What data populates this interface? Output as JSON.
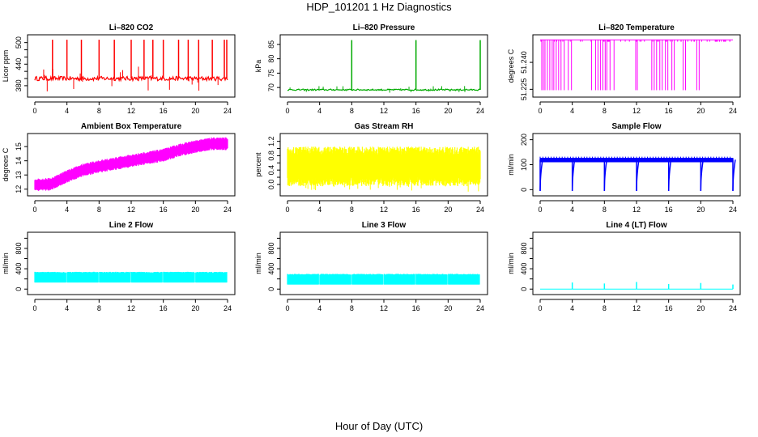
{
  "page": {
    "title": "HDP_101201  1 Hz Diagnostics",
    "xlabel": "Hour of Day (UTC)"
  },
  "chart_data": [
    {
      "type": "line",
      "title": "Li–820 CO2",
      "ylabel": "Licor ppm",
      "xlabel": "",
      "color": "#ff0000",
      "xlim": [
        0,
        24
      ],
      "ylim": [
        355,
        515
      ],
      "xticks": [
        0,
        4,
        8,
        12,
        16,
        20,
        24
      ],
      "yticks": [
        380,
        400,
        420,
        440,
        460,
        480,
        500
      ],
      "ytick_labels": [
        "380",
        "",
        "",
        "440",
        "",
        "",
        "500"
      ],
      "pattern": "baseline",
      "baseline": 400,
      "noise": 6,
      "spike_times": [
        2.2,
        4.0,
        5.8,
        8.0,
        9.9,
        12.0,
        13.6,
        14.7,
        16.0,
        17.9,
        19.1,
        20.4,
        22.1,
        23.6,
        23.9
      ],
      "spike_values": [
        508,
        508,
        508,
        508,
        508,
        508,
        508,
        508,
        508,
        508,
        508,
        508,
        508,
        508,
        508
      ]
    },
    {
      "type": "line",
      "title": "Li–820 Pressure",
      "ylabel": "kPa",
      "xlabel": "",
      "color": "#00aa00",
      "xlim": [
        0,
        24
      ],
      "ylim": [
        67.5,
        87.5
      ],
      "xticks": [
        0,
        4,
        8,
        12,
        16,
        20,
        24
      ],
      "yticks": [
        70,
        75,
        80,
        85
      ],
      "ytick_labels": [
        "70",
        "75",
        "80",
        "85"
      ],
      "pattern": "baseline",
      "baseline": 69.2,
      "noise": 0.25,
      "spike_times": [
        8.0,
        16.0,
        24.0
      ],
      "spike_values": [
        86.5,
        86.5,
        86.5
      ]
    },
    {
      "type": "line",
      "title": "Li–820 Temperature",
      "ylabel": "degrees C",
      "xlabel": "",
      "color": "#ff00ff",
      "xlim": [
        0,
        24
      ],
      "ylim": [
        51.222,
        51.254
      ],
      "xticks": [
        0,
        4,
        8,
        12,
        16,
        20,
        24
      ],
      "yticks": [
        51.225,
        51.24
      ],
      "ytick_labels": [
        "51.225",
        "51.240"
      ],
      "pattern": "dropouts",
      "high": 51.2525,
      "low": 51.2245,
      "drop_times": [
        0.2,
        0.4,
        0.6,
        0.9,
        1.2,
        1.5,
        1.7,
        2.0,
        2.3,
        2.6,
        3.0,
        3.5,
        3.9,
        6.4,
        6.9,
        7.2,
        7.5,
        7.8,
        8.1,
        8.3,
        8.7,
        9.2,
        11.9,
        12.1,
        13.9,
        14.2,
        14.5,
        14.9,
        15.2,
        15.6,
        15.9,
        16.4,
        16.7,
        17.8,
        18.1,
        19.5,
        19.8
      ]
    },
    {
      "type": "line",
      "title": "Ambient Box Temperature",
      "ylabel": "degrees C",
      "xlabel": "",
      "color": "#ff00ff",
      "xlim": [
        0,
        24
      ],
      "ylim": [
        11.7,
        15.75
      ],
      "xticks": [
        0,
        4,
        8,
        12,
        16,
        20,
        24
      ],
      "yticks": [
        12,
        13,
        14,
        15
      ],
      "ytick_labels": [
        "12",
        "13",
        "14",
        "15"
      ],
      "pattern": "band_trend",
      "band_width": 0.9,
      "trend_x": [
        0,
        2,
        4,
        6,
        8,
        12,
        16,
        18,
        20,
        22,
        24
      ],
      "trend_y": [
        12.3,
        12.35,
        12.9,
        13.35,
        13.6,
        14.0,
        14.4,
        14.75,
        15.0,
        15.2,
        15.2
      ]
    },
    {
      "type": "line",
      "title": "Gas Stream RH",
      "ylabel": "percent",
      "xlabel": "",
      "color": "#ffff00",
      "xlim": [
        0,
        24
      ],
      "ylim": [
        -0.25,
        1.35
      ],
      "xticks": [
        0,
        4,
        8,
        12,
        16,
        20,
        24
      ],
      "yticks": [
        0,
        0.2,
        0.4,
        0.6,
        0.8,
        1.0,
        1.2
      ],
      "ytick_labels": [
        "0.0",
        "",
        "0.4",
        "",
        "0.8",
        "",
        "1.2"
      ],
      "pattern": "band",
      "band_low": -0.05,
      "band_high": 1.05,
      "outlier_low": -0.2,
      "outlier_high": 1.3
    },
    {
      "type": "line",
      "title": "Sample Flow",
      "ylabel": "ml/min",
      "xlabel": "",
      "color": "#0000ff",
      "xlim": [
        0,
        24
      ],
      "ylim": [
        -15,
        215
      ],
      "xticks": [
        0,
        4,
        8,
        12,
        16,
        20,
        24
      ],
      "yticks": [
        0,
        100,
        200
      ],
      "ytick_labels": [
        "0",
        "100",
        "200"
      ],
      "pattern": "flow",
      "baseline": 120,
      "band_low": 110,
      "band_high": 127,
      "dip_times": [
        0.0,
        4.0,
        8.0,
        12.0,
        16.0,
        20.0,
        24.0
      ],
      "dip_value": -5
    },
    {
      "type": "line",
      "title": "Line 2 Flow",
      "ylabel": "ml/min",
      "xlabel": "",
      "color": "#00ffff",
      "xlim": [
        0,
        24
      ],
      "ylim": [
        -60,
        1070
      ],
      "xticks": [
        0,
        4,
        8,
        12,
        16,
        20,
        24
      ],
      "yticks": [
        0,
        200,
        400,
        600,
        800,
        1000
      ],
      "ytick_labels": [
        "0",
        "",
        "400",
        "",
        "800",
        ""
      ],
      "pattern": "blocks",
      "band_low": 130,
      "band_high": 340,
      "gap_times": [
        3.95,
        7.95,
        11.95,
        15.95,
        19.95
      ],
      "x_start": 0,
      "x_end": 23.9
    },
    {
      "type": "line",
      "title": "Line 3 Flow",
      "ylabel": "ml/min",
      "xlabel": "",
      "color": "#00ffff",
      "xlim": [
        0,
        24
      ],
      "ylim": [
        -60,
        1070
      ],
      "xticks": [
        0,
        4,
        8,
        12,
        16,
        20,
        24
      ],
      "yticks": [
        0,
        200,
        400,
        600,
        800,
        1000
      ],
      "ytick_labels": [
        "0",
        "",
        "400",
        "",
        "800",
        ""
      ],
      "pattern": "blocks",
      "band_low": 90,
      "band_high": 300,
      "gap_times": [
        3.95,
        7.95,
        11.95,
        15.95,
        19.95
      ],
      "x_start": 0,
      "x_end": 23.9
    },
    {
      "type": "line",
      "title": "Line 4 (LT) Flow",
      "ylabel": "ml/min",
      "xlabel": "",
      "color": "#00ffff",
      "xlim": [
        0,
        24
      ],
      "ylim": [
        -60,
        1070
      ],
      "xticks": [
        0,
        4,
        8,
        12,
        16,
        20,
        24
      ],
      "yticks": [
        0,
        200,
        400,
        600,
        800,
        1000
      ],
      "ytick_labels": [
        "0",
        "",
        "400",
        "",
        "800",
        ""
      ],
      "pattern": "baseline",
      "baseline": 0,
      "noise": 0,
      "spike_times": [
        4.0,
        8.0,
        12.0,
        16.0,
        20.0,
        24.0
      ],
      "spike_values": [
        130,
        110,
        140,
        100,
        120,
        90
      ]
    }
  ]
}
